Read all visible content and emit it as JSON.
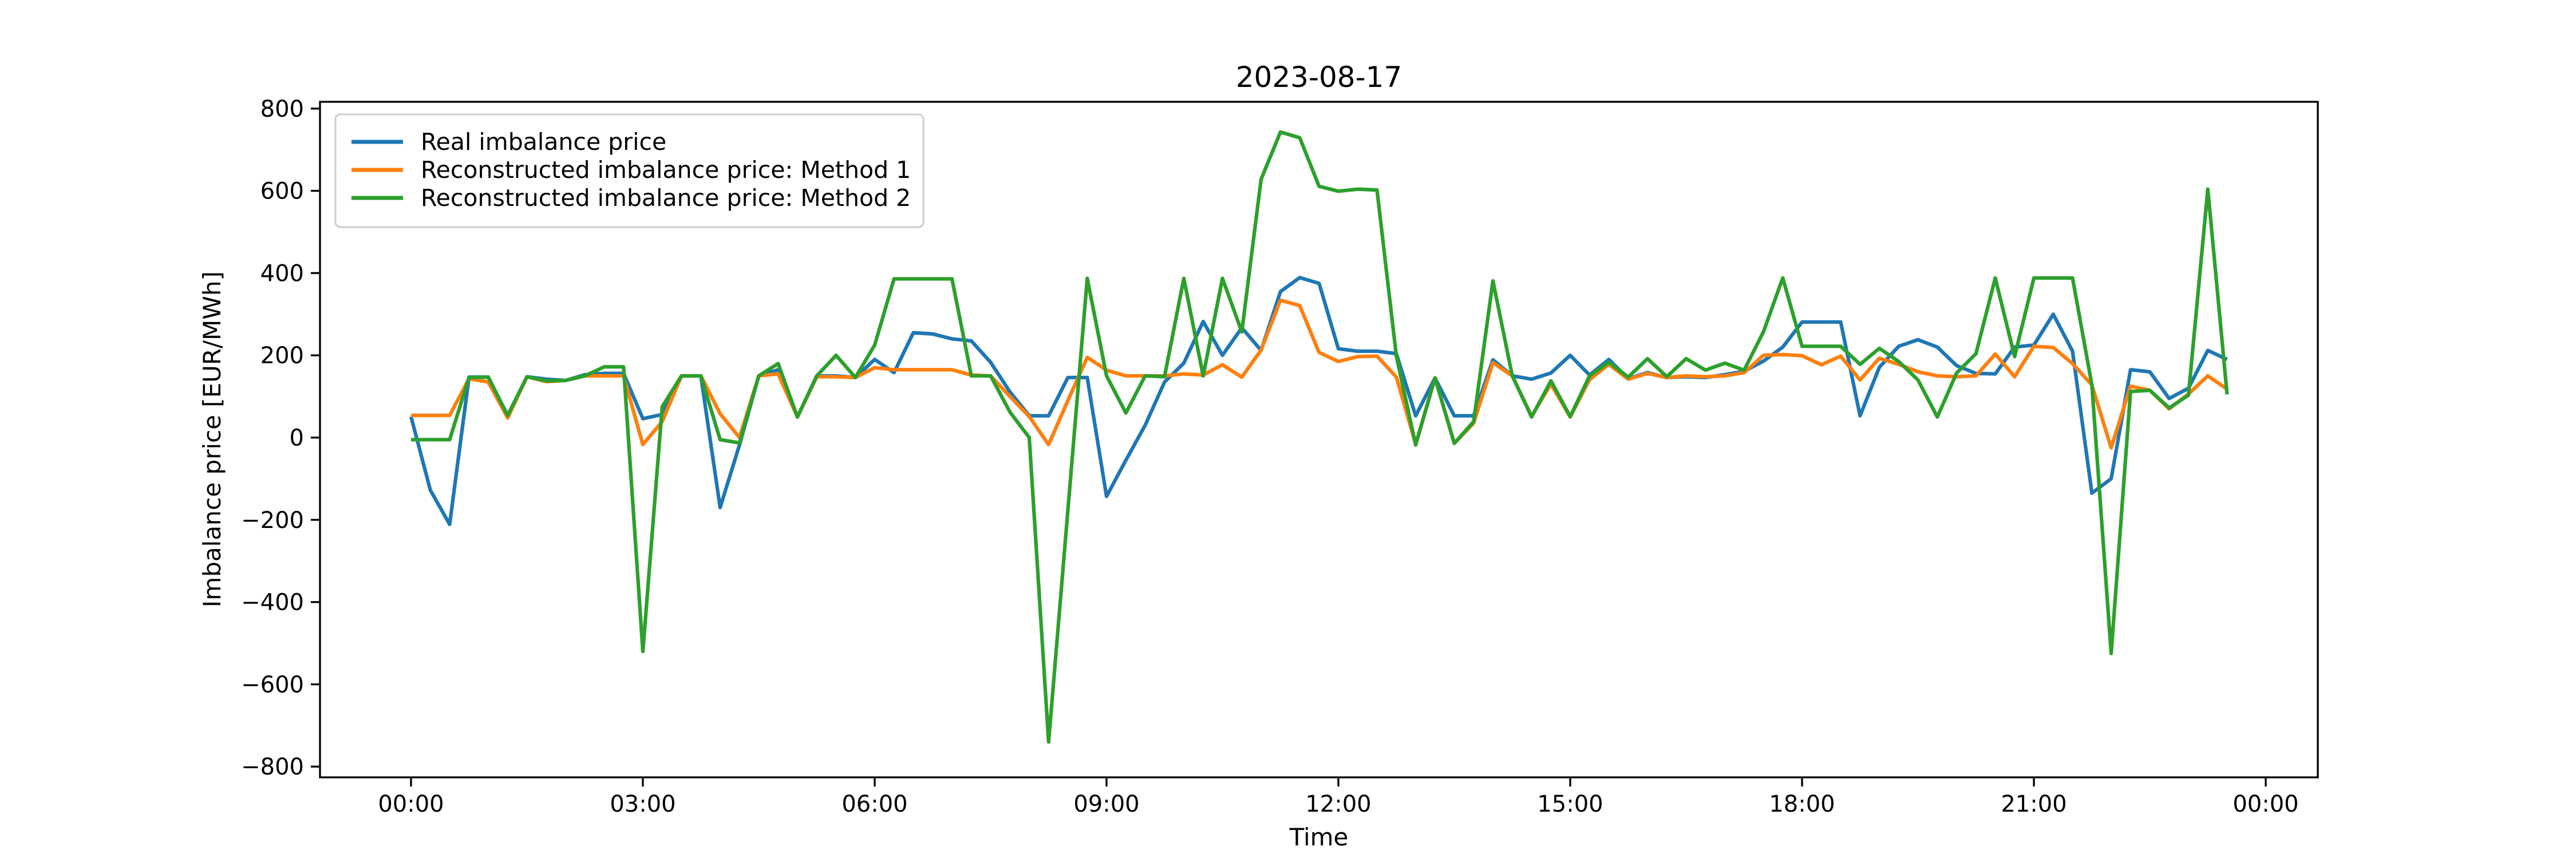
{
  "title": "2023-08-17",
  "axes": {
    "xlabel": "Time",
    "ylabel": "Imbalance price [EUR/MWh]",
    "x_tick_labels": [
      "00:00",
      "03:00",
      "06:00",
      "09:00",
      "12:00",
      "15:00",
      "18:00",
      "21:00",
      "00:00"
    ],
    "y_ticks": [
      800,
      600,
      400,
      200,
      0,
      -200,
      -400,
      -600,
      -800
    ],
    "y_tick_labels": [
      "800",
      "600",
      "400",
      "200",
      "0",
      "−200",
      "−400",
      "−600",
      "−800"
    ]
  },
  "legend": {
    "items": [
      {
        "label": "Real imbalance price",
        "color": "#1f77b4"
      },
      {
        "label": "Reconstructed imbalance price: Method 1",
        "color": "#ff7f0e"
      },
      {
        "label": "Reconstructed imbalance price: Method 2",
        "color": "#2ca02c"
      }
    ]
  },
  "chart_data": {
    "type": "line",
    "x_start": "00:00",
    "x_step_minutes": 15,
    "n_points": 95,
    "x_tick_labels": [
      "00:00",
      "03:00",
      "06:00",
      "09:00",
      "12:00",
      "15:00",
      "18:00",
      "21:00",
      "00:00"
    ],
    "ylabel": "Imbalance price [EUR/MWh]",
    "xlabel": "Time",
    "ylim": [
      -814,
      826
    ],
    "grid": false,
    "legend_position": "upper left",
    "series": [
      {
        "name": "Real imbalance price",
        "color": "#1f77b4",
        "values": [
          51,
          -128,
          -211,
          147,
          147,
          48,
          148,
          142,
          139,
          153,
          156,
          156,
          46,
          56,
          150,
          150,
          -170,
          -18,
          150,
          165,
          50,
          150,
          150,
          146,
          190,
          158,
          255,
          252,
          240,
          235,
          183,
          111,
          53,
          53,
          146,
          146,
          -143,
          -55,
          30,
          135,
          181,
          282,
          200,
          267,
          212,
          355,
          389,
          375,
          216,
          210,
          210,
          204,
          53,
          145,
          53,
          53,
          189,
          150,
          142,
          157,
          200,
          152,
          190,
          143,
          158,
          146,
          148,
          146,
          153,
          161,
          186,
          220,
          281,
          281,
          281,
          53,
          171,
          222,
          238,
          220,
          175,
          156,
          155,
          220,
          225,
          300,
          210,
          -135,
          -100,
          165,
          160,
          95,
          120,
          212,
          190
        ]
      },
      {
        "name": "Reconstructed imbalance price: Method 1",
        "color": "#ff7f0e",
        "values": [
          54,
          54,
          54,
          143,
          135,
          48,
          148,
          136,
          139,
          150,
          150,
          150,
          -17,
          39,
          150,
          150,
          58,
          0,
          150,
          155,
          50,
          148,
          148,
          146,
          170,
          165,
          165,
          165,
          165,
          152,
          150,
          100,
          51,
          -17,
          90,
          195,
          164,
          150,
          150,
          150,
          155,
          152,
          177,
          147,
          213,
          334,
          321,
          207,
          185,
          197,
          198,
          147,
          -16,
          145,
          -14,
          35,
          182,
          150,
          52,
          130,
          50,
          141,
          178,
          142,
          156,
          146,
          150,
          148,
          150,
          158,
          200,
          202,
          199,
          177,
          198,
          140,
          193,
          178,
          160,
          150,
          148,
          150,
          203,
          148,
          222,
          219,
          180,
          128,
          -25,
          125,
          115,
          70,
          106,
          150,
          118
        ]
      },
      {
        "name": "Reconstructed imbalance price: Method 2",
        "color": "#2ca02c",
        "values": [
          -5,
          -5,
          -5,
          146,
          147,
          54,
          148,
          138,
          139,
          150,
          172,
          172,
          -520,
          75,
          150,
          150,
          -5,
          -13,
          150,
          180,
          50,
          150,
          200,
          146,
          225,
          386,
          386,
          386,
          386,
          150,
          150,
          62,
          0,
          -740,
          -176,
          387,
          150,
          60,
          150,
          148,
          387,
          150,
          387,
          257,
          628,
          743,
          729,
          611,
          599,
          604,
          602,
          198,
          -18,
          145,
          -14,
          39,
          381,
          150,
          50,
          138,
          51,
          150,
          183,
          147,
          192,
          148,
          192,
          164,
          181,
          164,
          257,
          388,
          222,
          222,
          222,
          178,
          217,
          185,
          140,
          50,
          157,
          204,
          388,
          197,
          388,
          388,
          388,
          128,
          -525,
          112,
          115,
          72,
          103,
          604,
          105
        ]
      }
    ]
  }
}
